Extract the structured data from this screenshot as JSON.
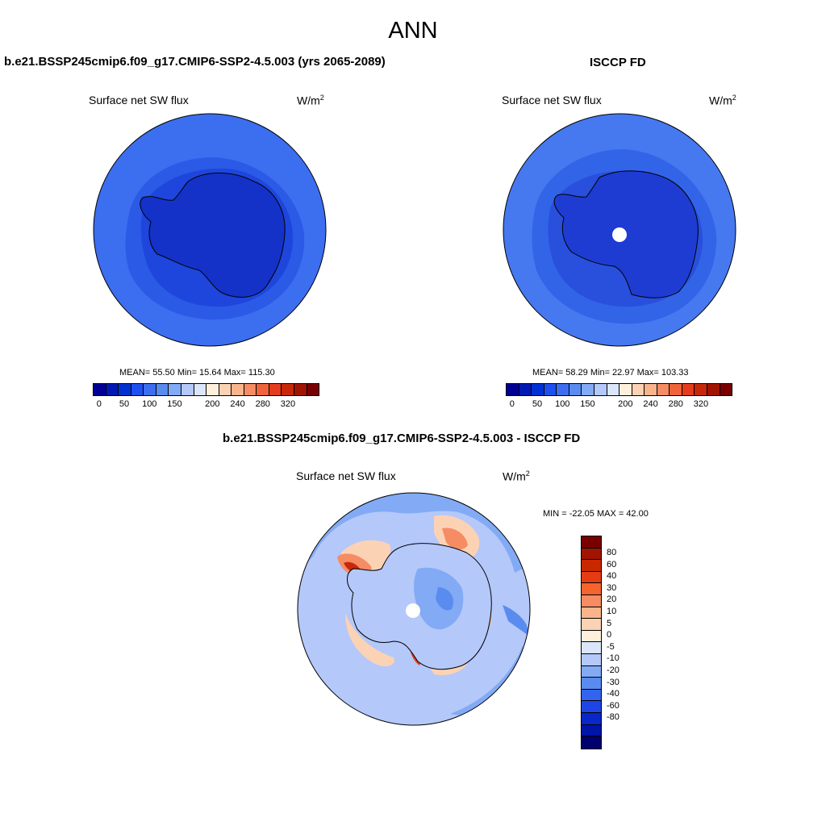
{
  "figure": {
    "title": "ANN"
  },
  "panels": {
    "model": {
      "header": "b.e21.BSSP245cmip6.f09_g17.CMIP6-SSP2-4.5.003 (yrs 2065-2089)",
      "variable": "Surface net SW flux",
      "units": "W/m",
      "units_exp": "2",
      "stats": "MEAN=  55.50  Min=  15.64  Max= 115.30"
    },
    "obs": {
      "header": "ISCCP FD",
      "variable": "Surface net SW flux",
      "units": "W/m",
      "units_exp": "2",
      "stats": "MEAN=  58.29  Min=  22.97  Max= 103.33"
    },
    "diff": {
      "header": "b.e21.BSSP245cmip6.f09_g17.CMIP6-SSP2-4.5.003 - ISCCP FD",
      "variable": "Surface net SW flux",
      "units": "W/m",
      "units_exp": "2",
      "stats": "MIN = -22.05 MAX =  42.00"
    }
  },
  "colorbars": {
    "abs": {
      "colors": [
        "#000096",
        "#0019b4",
        "#0032d2",
        "#1e50f0",
        "#3c6ef0",
        "#5a8cf0",
        "#82aaf5",
        "#b4c8fa",
        "#dce6fa",
        "#fff0dc",
        "#fcd2b4",
        "#fab48c",
        "#f58c64",
        "#f0643c",
        "#e63c1e",
        "#c8280a",
        "#a01400",
        "#780000"
      ],
      "tick_labels": [
        "0",
        "50",
        "100",
        "150",
        "200",
        "240",
        "280",
        "320"
      ]
    },
    "diff": {
      "colors": [
        "#780000",
        "#a01400",
        "#c82800",
        "#e63c14",
        "#f5642d",
        "#f58c64",
        "#fab48c",
        "#fcd2b4",
        "#fff0dc",
        "#dce6fa",
        "#b4c8fa",
        "#82aaf5",
        "#5a8cf0",
        "#3264f0",
        "#1e46e6",
        "#0a28c8",
        "#0014aa",
        "#00006e"
      ],
      "labels": [
        "80",
        "60",
        "40",
        "30",
        "20",
        "10",
        "5",
        "0",
        "-5",
        "-10",
        "-20",
        "-30",
        "-40",
        "-60",
        "-80"
      ]
    }
  }
}
